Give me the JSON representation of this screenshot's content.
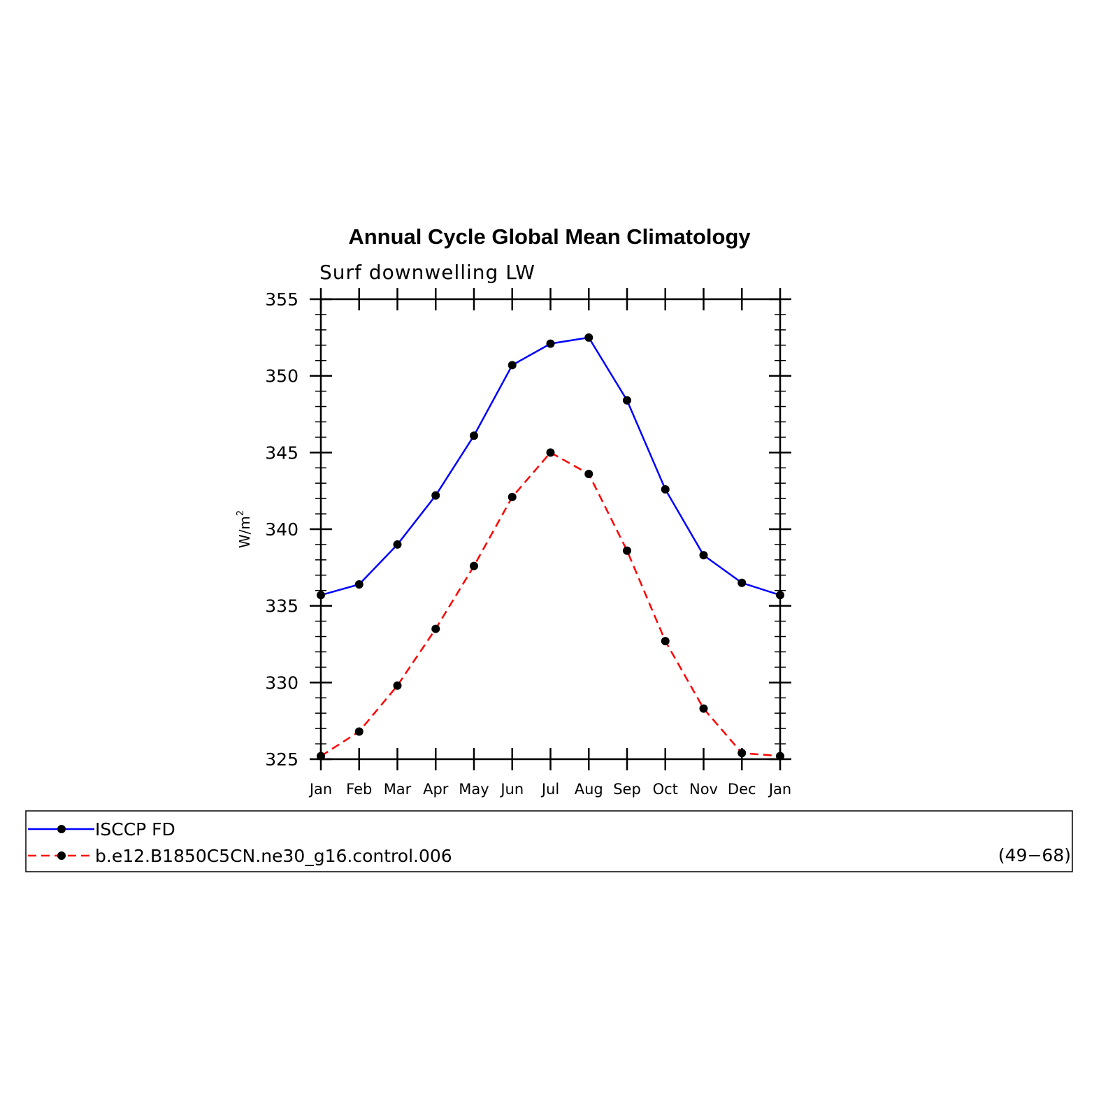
{
  "chart_data": {
    "type": "line",
    "title": "Annual Cycle Global Mean Climatology",
    "subtitle": "Surf downwelling LW",
    "ylabel": "W/m",
    "ylabel_sup": "2",
    "xlabel": "",
    "categories": [
      "Jan",
      "Feb",
      "Mar",
      "Apr",
      "May",
      "Jun",
      "Jul",
      "Aug",
      "Sep",
      "Oct",
      "Nov",
      "Dec",
      "Jan"
    ],
    "ylim": [
      325,
      355
    ],
    "yticks": [
      "325",
      "330",
      "335",
      "340",
      "345",
      "350",
      "355"
    ],
    "grid": false,
    "legend_position": "bottom",
    "series": [
      {
        "name": "ISCCP FD",
        "color": "#0000ff",
        "style": "solid",
        "values": [
          335.7,
          336.4,
          339.0,
          342.2,
          346.1,
          350.7,
          352.1,
          352.5,
          348.4,
          342.6,
          338.3,
          336.5,
          335.7
        ]
      },
      {
        "name": "b.e12.B1850C5CN.ne30_g16.control.006",
        "color": "#ff0000",
        "style": "dashed",
        "values": [
          325.2,
          326.8,
          329.8,
          333.5,
          337.6,
          342.1,
          345.0,
          343.6,
          338.6,
          332.7,
          328.3,
          325.4,
          325.2
        ]
      }
    ],
    "legend_note": "(49−68)"
  }
}
